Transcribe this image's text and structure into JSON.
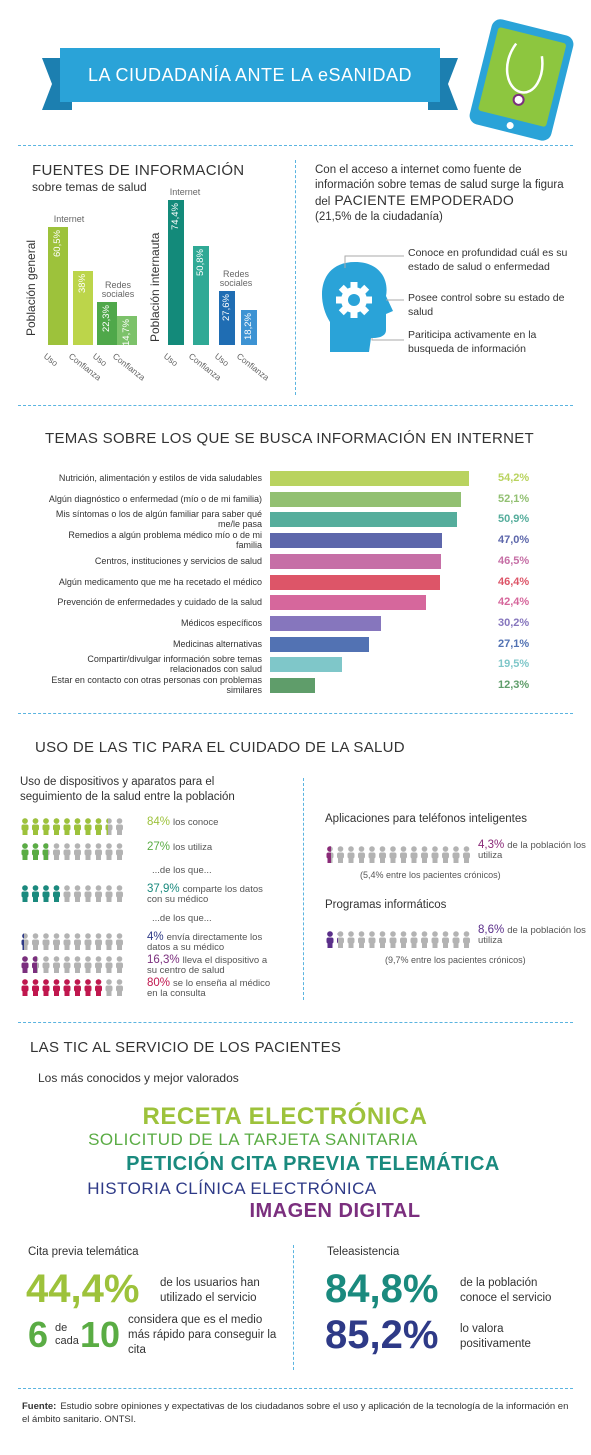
{
  "header": {
    "title": "LA CIUDADANÍA ANTE LA eSANIDAD"
  },
  "sources": {
    "title": "FUENTES DE INFORMACIÓN",
    "subtitle": "sobre temas de salud",
    "panels": [
      {
        "name": "Población general",
        "groups": [
          {
            "name": "Internet",
            "categories": [
              "Uso",
              "Confianza"
            ],
            "values": [
              60.5,
              38
            ],
            "value_labels": [
              "60,5%",
              "38%"
            ],
            "colors": [
              "#9dc23b",
              "#bcd54a"
            ]
          },
          {
            "name": "Redes sociales",
            "categories": [
              "Uso",
              "Confianza"
            ],
            "values": [
              22.3,
              14.7
            ],
            "value_labels": [
              "22,3%",
              "14,7%"
            ],
            "colors": [
              "#4fa84a",
              "#7cc26a"
            ]
          }
        ]
      },
      {
        "name": "Población internauta",
        "groups": [
          {
            "name": "Internet",
            "categories": [
              "Uso",
              "Confianza"
            ],
            "values": [
              74.4,
              50.8
            ],
            "value_labels": [
              "74,4%",
              "50,8%"
            ],
            "colors": [
              "#138a7a",
              "#2fa995"
            ]
          },
          {
            "name": "Redes sociales",
            "categories": [
              "Uso",
              "Confianza"
            ],
            "values": [
              27.6,
              18.2
            ],
            "value_labels": [
              "27,6%",
              "18,2%"
            ],
            "colors": [
              "#1f6db3",
              "#3d93d3"
            ]
          }
        ]
      }
    ]
  },
  "empowered": {
    "intro": "Con el acceso a internet como fuente de información sobre temas de salud surge la figura del",
    "highlight": "PACIENTE EMPODERADO",
    "share": "(21,5% de la ciudadanía)",
    "items": [
      "Conoce en profundidad cuál es su estado de salud o enfermedad",
      "Posee control sobre su estado de salud",
      "Pariticipa activamente en la busqueda de información"
    ]
  },
  "topics": {
    "title": "TEMAS SOBRE LOS QUE SE BUSCA INFORMACIÓN EN INTERNET",
    "categories": [
      "Nutrición, alimentación y estilos de vida saludables",
      "Algún diagnóstico o enfermedad (mío o de mi familia)",
      "Mis síntomas o los de algún familiar para saber qué me/le pasa",
      "Remedios a algún problema médico mío o de mi familia",
      "Centros, instituciones y servicios de salud",
      "Algún medicamento que me ha recetado el médico",
      "Prevención de enfermedades y cuidado de la salud",
      "Médicos específicos",
      "Medicinas alternativas",
      "Compartir/divulgar información sobre temas relacionados con salud",
      "Estar en contacto con otras personas con problemas similares"
    ],
    "values": [
      54.2,
      52.1,
      50.9,
      47.0,
      46.5,
      46.4,
      42.4,
      30.2,
      27.1,
      19.5,
      12.3
    ],
    "value_labels": [
      "54,2%",
      "52,1%",
      "50,9%",
      "47,0%",
      "46,5%",
      "46,4%",
      "42,4%",
      "30,2%",
      "27,1%",
      "19,5%",
      "12,3%"
    ],
    "colors": [
      "#b9d35f",
      "#92c072",
      "#55ad9c",
      "#5d67ab",
      "#c66fa6",
      "#dd5568",
      "#d6679c",
      "#8676bd",
      "#5272b3",
      "#7fc7c9",
      "#5f9d6a"
    ]
  },
  "tic": {
    "title": "USO DE LAS TIC PARA EL CUIDADO DE LA SALUD",
    "devices": {
      "title": "Uso de dispositivos y aparatos para el seguimiento de la salud entre la población",
      "rows": [
        {
          "value": 84,
          "value_label": "84%",
          "text": "los conoce",
          "color": "#9dc23b"
        },
        {
          "value": 27,
          "value_label": "27%",
          "text": "los utiliza",
          "color": "#5aac44"
        },
        {
          "value": 37.9,
          "value_label": "37,9%",
          "text": "comparte los datos con su médico",
          "color": "#1a8a7e"
        },
        {
          "value": 4,
          "value_label": "4%",
          "text": "envía directamente los datos a su médico",
          "color": "#2e3a87"
        },
        {
          "value": 16.3,
          "value_label": "16,3%",
          "text": "lleva el dispositivo a su centro de salud",
          "color": "#7b2f7e"
        },
        {
          "value": 80,
          "value_label": "80%",
          "text": "se lo enseña al médico en la consulta",
          "color": "#c0174e"
        }
      ],
      "connectors": [
        "...de los que...",
        "...de los que..."
      ]
    },
    "apps": {
      "title": "Aplicaciones para teléfonos inteligentes",
      "value": 4.3,
      "value_label": "4,3%",
      "text": "de la población los utiliza",
      "note": "(5,4% entre los pacientes crónicos)",
      "color": "#8a2a78"
    },
    "software": {
      "title": "Programas informáticos",
      "value": 8.6,
      "value_label": "8,6%",
      "text": "de la población los utiliza",
      "note": "(9,7% entre los pacientes crónicos)",
      "color": "#5a2e8a"
    }
  },
  "services": {
    "title": "LAS TIC AL SERVICIO DE LOS PACIENTES",
    "subtitle": "Los más conocidos y mejor valorados",
    "ranking": [
      {
        "text": "RECETA ELECTRÓNICA",
        "color": "#9dc23b"
      },
      {
        "text": "SOLICITUD DE LA TARJETA SANITARIA",
        "color": "#5aac44"
      },
      {
        "text": "PETICIÓN CITA PREVIA TELEMÁTICA",
        "color": "#1a8a7e"
      },
      {
        "text": "HISTORIA CLÍNICA ELECTRÓNICA",
        "color": "#2e3a87"
      },
      {
        "text": "IMAGEN DIGITAL",
        "color": "#7b2f7e"
      }
    ],
    "appointments": {
      "title": "Cita previa telemática",
      "stat": "44,4%",
      "stat_text": "de los usuarios han utilizado el servicio",
      "ratio_a": "6",
      "ratio_of": "de cada",
      "ratio_b": "10",
      "ratio_text": "considera que es el medio más rápido para conseguir la cita"
    },
    "telecare": {
      "title": "Teleasistencia",
      "stats": [
        {
          "value": "84,8%",
          "text": "de la población conoce el servicio"
        },
        {
          "value": "85,2%",
          "text": "lo valora positivamente"
        }
      ]
    }
  },
  "footer": {
    "label": "Fuente:",
    "text": "Estudio sobre opiniones y expectativas de los ciudadanos sobre el uso y aplicación de la tecnología de la información en el ámbito sanitario. ONTSI."
  }
}
